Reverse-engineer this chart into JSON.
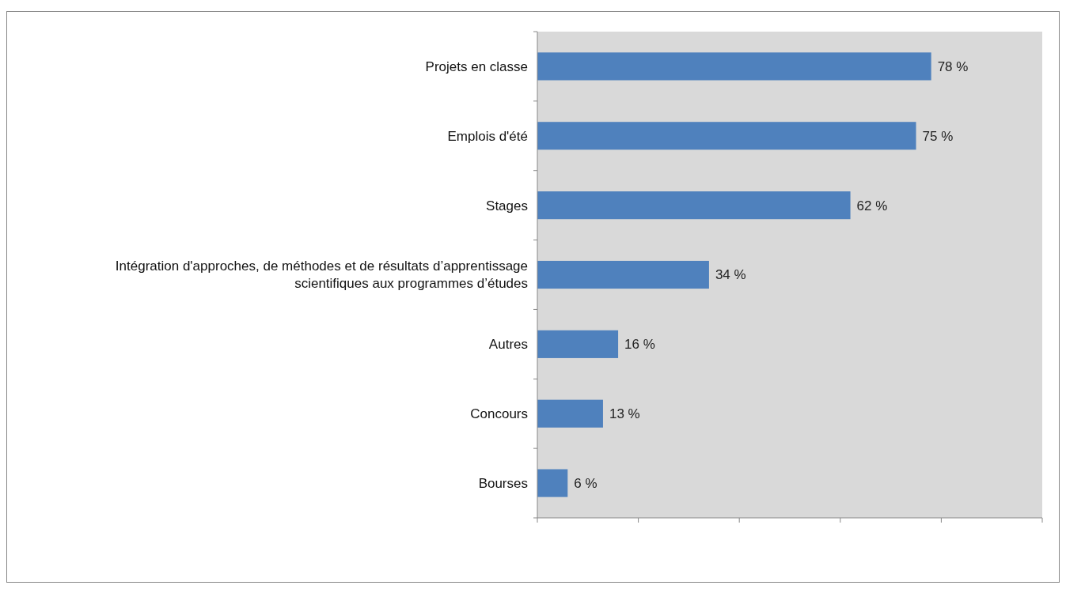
{
  "chart_data": {
    "type": "bar",
    "orientation": "horizontal",
    "categories": [
      "Projets en classe",
      "Emplois d'été",
      "Stages",
      "Intégration d'approches, de méthodes et de résultats d’apprentissage scientifiques aux programmes d’études",
      "Autres",
      "Concours",
      "Bourses"
    ],
    "values": [
      78,
      75,
      62,
      34,
      16,
      13,
      6
    ],
    "value_labels": [
      "78 %",
      "75 %",
      "62 %",
      "34 %",
      "16 %",
      "13 %",
      "6 %"
    ],
    "color": "#4f81bd",
    "xlim": [
      0,
      100
    ],
    "xticks": [
      {
        "value": 0,
        "label": null
      },
      {
        "value": 20,
        "label": null
      },
      {
        "value": 40,
        "label": null
      },
      {
        "value": 60,
        "label": null
      },
      {
        "value": 80,
        "label": null
      },
      {
        "value": 100,
        "label": null
      }
    ],
    "tick_labels": "y",
    "grid": false
  }
}
